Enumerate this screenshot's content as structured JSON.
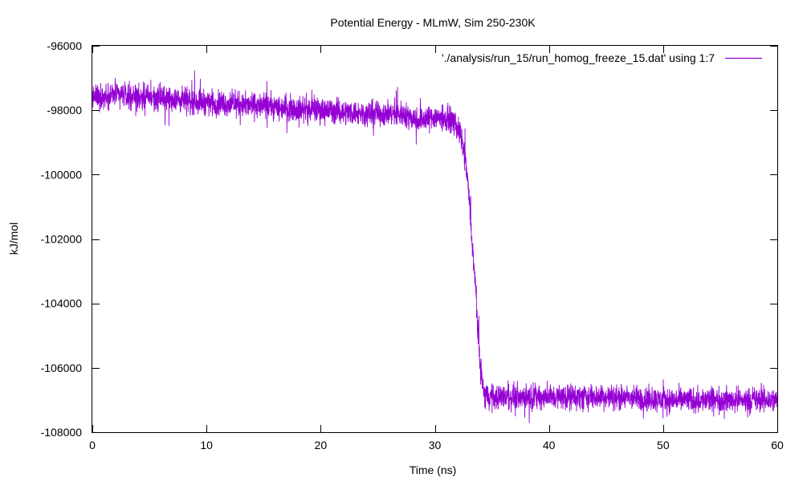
{
  "chart_data": {
    "type": "line",
    "title": "Potential Energy - MLmW, Sim 250-230K",
    "xlabel": "Time (ns)",
    "ylabel": "kJ/mol",
    "xlim": [
      0,
      60
    ],
    "ylim": [
      -108000,
      -96000
    ],
    "xticks": [
      0,
      10,
      20,
      30,
      40,
      50,
      60
    ],
    "yticks": [
      -108000,
      -106000,
      -104000,
      -102000,
      -100000,
      -98000,
      -96000
    ],
    "grid": false,
    "legend_position": "top-right",
    "series": [
      {
        "name": "'./analysis/run_15/run_homog_freeze_15.dat' using 1:7",
        "color": "#9400d3",
        "noise_amplitude": 280,
        "x": [
          0,
          2,
          5,
          8,
          12,
          16,
          20,
          24,
          27,
          28.5,
          30,
          31.5,
          32.2,
          32.7,
          33.0,
          33.3,
          33.6,
          33.8,
          34.0,
          34.3,
          35,
          40,
          45,
          50,
          55,
          60
        ],
        "y": [
          -97600,
          -97500,
          -97600,
          -97700,
          -97800,
          -97900,
          -98000,
          -98100,
          -98100,
          -98300,
          -98200,
          -98300,
          -98700,
          -99600,
          -100700,
          -102300,
          -103700,
          -105100,
          -106000,
          -106800,
          -106900,
          -106900,
          -106900,
          -107000,
          -107000,
          -107000
        ]
      }
    ]
  }
}
